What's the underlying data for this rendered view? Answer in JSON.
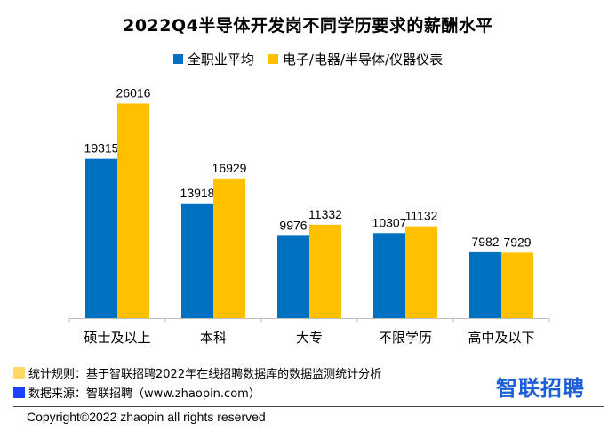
{
  "chart_data": {
    "type": "bar",
    "title": "2022Q4半导体开发岗不同学历要求的薪酬水平",
    "categories": [
      "硕士及以上",
      "本科",
      "大专",
      "不限学历",
      "高中及以下"
    ],
    "series": [
      {
        "name": "全职业平均",
        "color": "#0070c0",
        "values": [
          19315,
          13918,
          9976,
          10307,
          7982
        ]
      },
      {
        "name": "电子/电器/半导体/仪器仪表",
        "color": "#ffc000",
        "values": [
          26016,
          16929,
          11332,
          11132,
          7929
        ]
      }
    ],
    "ylim": [
      0,
      28000
    ],
    "xlabel": "",
    "ylabel": "",
    "grid": false,
    "legend_position": "top"
  },
  "notes": {
    "rule_label": "统计规则：基于智联招聘2022年在线招聘数据库的数据监测统计分析",
    "rule_color": "#ffd966",
    "source_label": "数据来源：智联招聘（www.zhaopin.com）",
    "source_color": "#1e40ff"
  },
  "logo_text": "智联招聘",
  "copyright": "Copyright©2022 zhaopin all rights reserved"
}
